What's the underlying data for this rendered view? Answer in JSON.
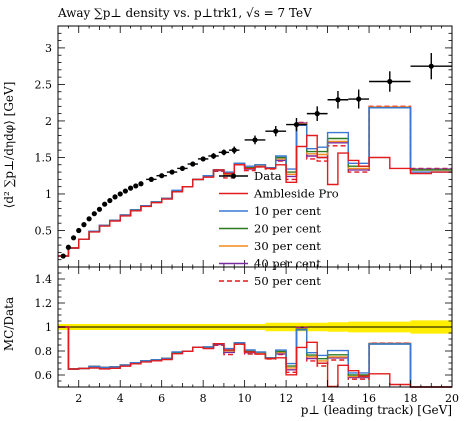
{
  "chart_data": {
    "type": "line",
    "title": "Away ∑p⊥ density vs. p⊥trk1, √s = 7 TeV",
    "xlabel": "p⊥ (leading track) [GeV]",
    "ylabel": "⟨d² ∑p⊥/dηdφ⟩ [GeV]",
    "ratio_ylabel": "MC/Data",
    "xlim": [
      1,
      20
    ],
    "ylim": [
      0,
      3.3
    ],
    "ratio_ylim": [
      0.5,
      1.5
    ],
    "x_ticks": [
      "2",
      "4",
      "6",
      "8",
      "10",
      "12",
      "14",
      "16",
      "18",
      "20"
    ],
    "y_ticks": [
      "0.5",
      "1",
      "1.5",
      "2",
      "2.5",
      "3"
    ],
    "ratio_y_ticks": [
      "0.6",
      "0.8",
      "1",
      "1.2",
      "1.4"
    ],
    "legend_position": "bottom-right",
    "bin_edges": [
      1.0,
      1.5,
      2.0,
      2.5,
      3.0,
      3.5,
      4.0,
      4.5,
      5.0,
      5.5,
      6.0,
      6.5,
      7.0,
      7.5,
      8.0,
      8.5,
      9.0,
      9.5,
      10.0,
      11.0,
      12.0,
      13.0,
      14.0,
      15.0,
      16.0,
      18.0,
      20.0
    ],
    "data": {
      "name": "Data",
      "x": [
        1.25,
        1.5,
        1.75,
        2.0,
        2.25,
        2.5,
        2.75,
        3.0,
        3.25,
        3.5,
        3.75,
        4.0,
        4.25,
        4.5,
        4.75,
        5.0,
        5.5,
        6.0,
        6.5,
        7.0,
        7.5,
        8.0,
        8.5,
        9.0,
        9.5,
        10.5,
        11.5,
        12.5,
        13.5,
        14.5,
        15.5,
        17.0,
        19.0
      ],
      "y": [
        0.15,
        0.27,
        0.4,
        0.5,
        0.58,
        0.66,
        0.73,
        0.79,
        0.86,
        0.91,
        0.96,
        1.0,
        1.04,
        1.08,
        1.11,
        1.14,
        1.2,
        1.25,
        1.3,
        1.35,
        1.41,
        1.48,
        1.52,
        1.57,
        1.6,
        1.74,
        1.86,
        1.95,
        2.1,
        2.29,
        2.3,
        2.54,
        2.75
      ],
      "yerr": [
        0.01,
        0.01,
        0.01,
        0.01,
        0.01,
        0.01,
        0.01,
        0.01,
        0.01,
        0.01,
        0.01,
        0.01,
        0.01,
        0.01,
        0.01,
        0.02,
        0.02,
        0.02,
        0.02,
        0.03,
        0.03,
        0.03,
        0.04,
        0.04,
        0.05,
        0.06,
        0.07,
        0.09,
        0.1,
        0.12,
        0.13,
        0.14,
        0.18
      ],
      "xerr": [
        0,
        0,
        0,
        0,
        0,
        0,
        0,
        0,
        0,
        0,
        0,
        0,
        0,
        0,
        0,
        0,
        0.25,
        0.25,
        0.25,
        0.25,
        0.25,
        0.25,
        0.25,
        0.25,
        0.25,
        0.5,
        0.5,
        0.5,
        0.5,
        0.5,
        0.5,
        1.0,
        1.0
      ],
      "color": "#000000"
    },
    "series": [
      {
        "name": "Ambleside Pro",
        "color": "#e41a1c",
        "dash": "",
        "values": [
          0.15,
          0.26,
          0.38,
          0.48,
          0.56,
          0.63,
          0.7,
          0.77,
          0.83,
          0.88,
          0.93,
          1.03,
          1.1,
          1.2,
          1.23,
          1.33,
          1.28,
          1.4,
          1.35,
          1.37,
          1.35,
          1.4,
          1.16,
          1.65,
          1.8,
          1.5,
          1.13,
          1.56,
          1.46,
          1.38,
          1.5,
          1.35,
          1.28,
          1.3,
          1.84
        ]
      },
      {
        "name": "10 per cent",
        "color": "#3a78d6",
        "dash": "",
        "values": [
          0.15,
          0.26,
          0.38,
          0.49,
          0.57,
          0.64,
          0.71,
          0.78,
          0.84,
          0.89,
          0.94,
          1.05,
          1.1,
          1.2,
          1.25,
          1.33,
          1.3,
          1.42,
          1.38,
          1.4,
          1.36,
          1.52,
          1.34,
          1.94,
          1.62,
          1.64,
          1.84,
          1.42,
          2.18,
          1.3
        ]
      },
      {
        "name": "20 per cent",
        "color": "#2c7a1f",
        "dash": "",
        "values": [
          0.15,
          0.26,
          0.38,
          0.49,
          0.57,
          0.64,
          0.71,
          0.78,
          0.84,
          0.89,
          0.94,
          1.04,
          1.1,
          1.2,
          1.25,
          1.33,
          1.28,
          1.42,
          1.36,
          1.4,
          1.36,
          1.5,
          1.3,
          1.95,
          1.58,
          1.58,
          1.76,
          1.38,
          2.18,
          1.33
        ]
      },
      {
        "name": "30 per cent",
        "color": "#f08a1c",
        "dash": "",
        "values": [
          0.15,
          0.26,
          0.38,
          0.49,
          0.57,
          0.64,
          0.71,
          0.78,
          0.84,
          0.89,
          0.94,
          1.04,
          1.1,
          1.2,
          1.24,
          1.33,
          1.27,
          1.41,
          1.35,
          1.39,
          1.35,
          1.48,
          1.27,
          1.96,
          1.55,
          1.54,
          1.72,
          1.35,
          2.19,
          1.33
        ]
      },
      {
        "name": "40 per cent",
        "color": "#7a2aa0",
        "dash": "",
        "values": [
          0.15,
          0.26,
          0.38,
          0.49,
          0.57,
          0.64,
          0.71,
          0.78,
          0.84,
          0.89,
          0.94,
          1.04,
          1.1,
          1.2,
          1.24,
          1.32,
          1.25,
          1.41,
          1.34,
          1.38,
          1.35,
          1.46,
          1.24,
          1.97,
          1.52,
          1.5,
          1.7,
          1.33,
          2.19,
          1.34
        ]
      },
      {
        "name": "50 per cent",
        "color": "#e41a1c",
        "dash": "5,3",
        "values": [
          0.15,
          0.26,
          0.38,
          0.49,
          0.57,
          0.64,
          0.71,
          0.78,
          0.84,
          0.89,
          0.94,
          1.04,
          1.1,
          1.2,
          1.24,
          1.31,
          1.22,
          1.4,
          1.32,
          1.37,
          1.34,
          1.45,
          1.2,
          1.98,
          1.48,
          1.45,
          1.66,
          1.3,
          2.2,
          1.35
        ]
      }
    ]
  }
}
